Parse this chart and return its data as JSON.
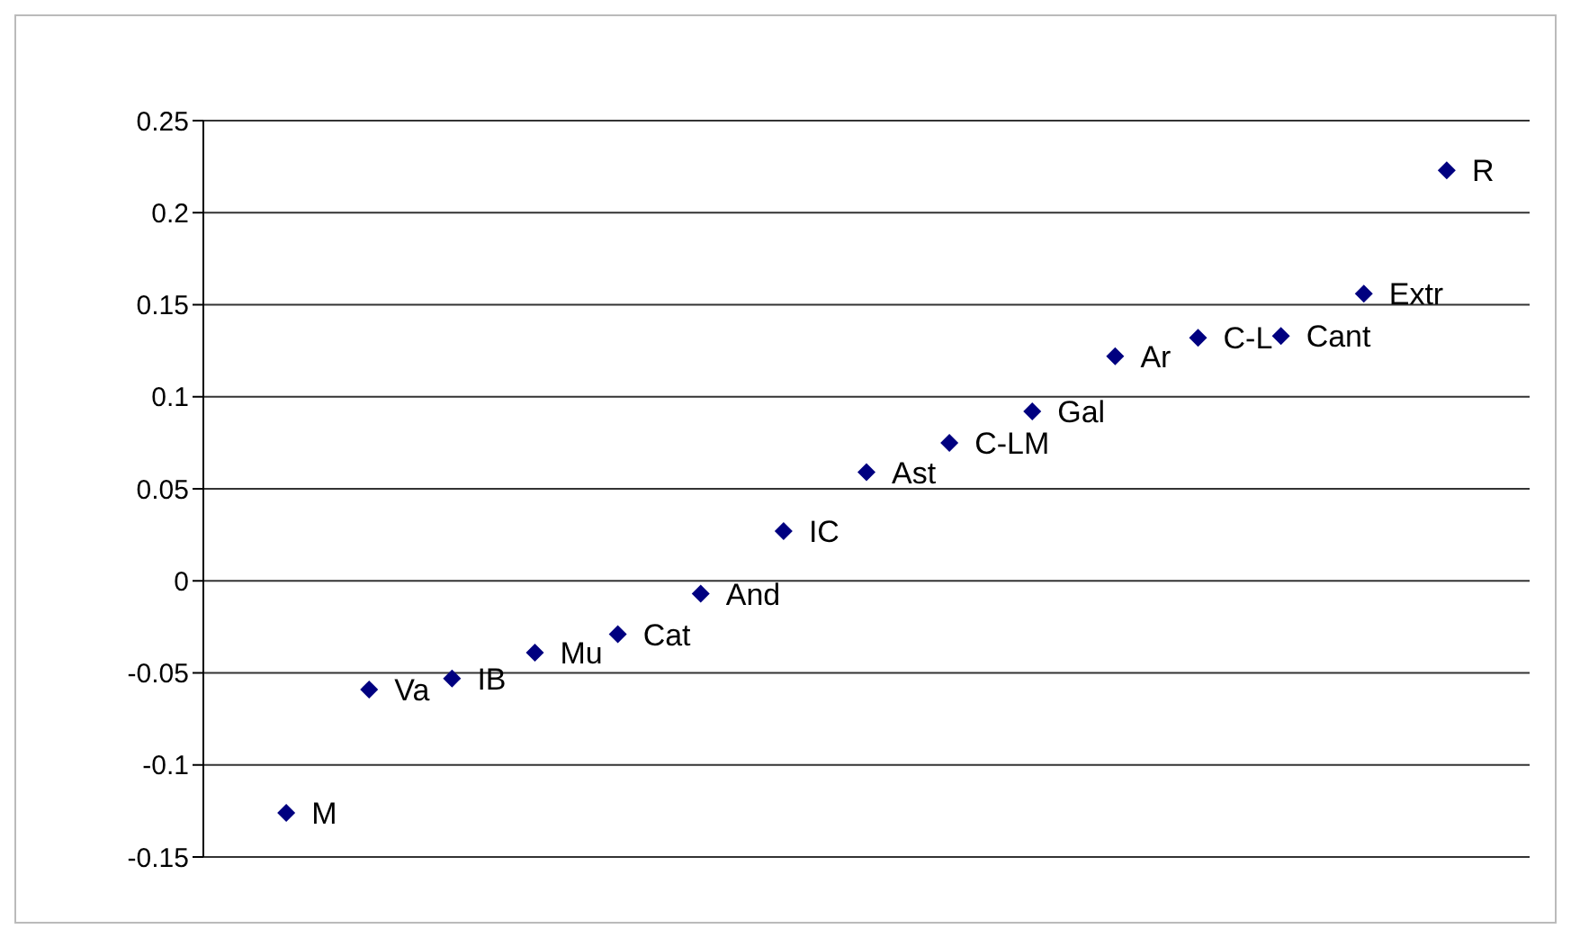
{
  "chart_data": {
    "type": "scatter",
    "categories": [
      null,
      null,
      null,
      null,
      null,
      null,
      null,
      null,
      null,
      null,
      null,
      null,
      null,
      null,
      null
    ],
    "series": [
      {
        "color": "#000080",
        "values": [
          -0.126,
          -0.059,
          -0.053,
          -0.039,
          -0.029,
          -0.007,
          0.027,
          0.059,
          0.075,
          0.092,
          0.122,
          0.132,
          0.133,
          0.156,
          0.223
        ]
      }
    ],
    "annotations": [
      "M",
      "Va",
      "IB",
      "Mu",
      "Cat",
      "And",
      "IC",
      "Ast",
      "C-LM",
      "Gal",
      "Ar",
      "C-L",
      "Cant",
      "Extr",
      "R"
    ],
    "ylim": [
      -0.15,
      0.25
    ],
    "yticks": [
      -0.15,
      -0.1,
      -0.05,
      0,
      0.05,
      0.1,
      0.15,
      0.2,
      0.25
    ],
    "grid": "y",
    "marker": "diamond",
    "tick_labels": "y"
  }
}
